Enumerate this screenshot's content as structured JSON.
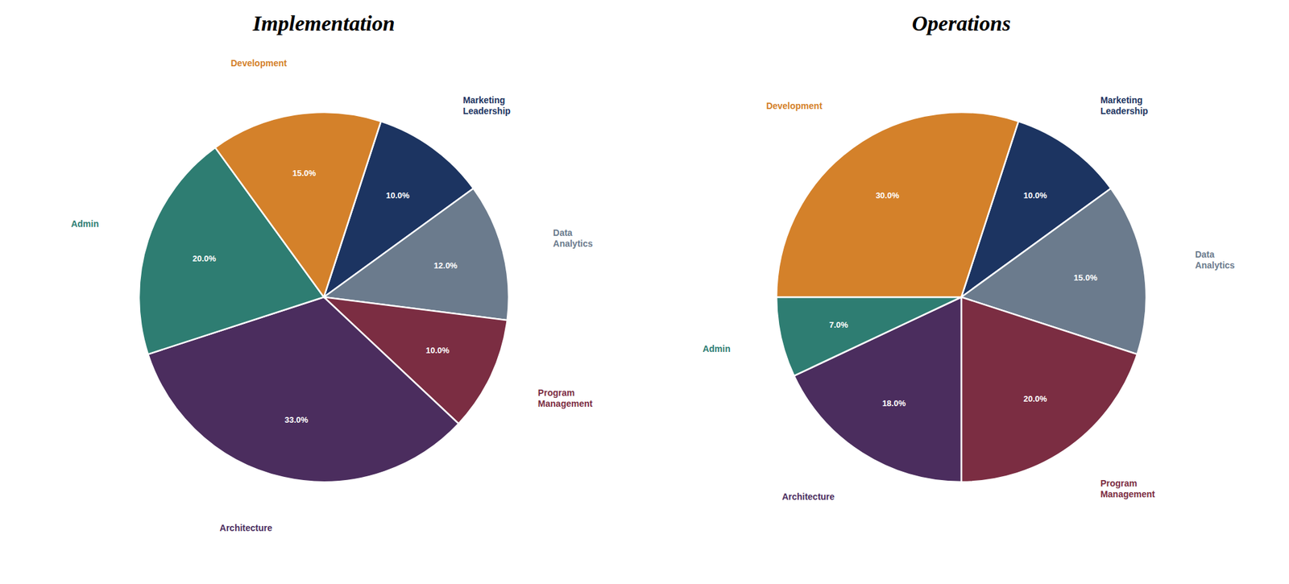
{
  "chart_data": [
    {
      "type": "pie",
      "title": "Implementation",
      "categories": [
        "Marketing\nLeadership",
        "Data\nAnalytics",
        "Program\nManagement",
        "Architecture",
        "Admin",
        "Development"
      ],
      "values": [
        10.0,
        12.0,
        10.0,
        33.0,
        20.0,
        15.0
      ],
      "value_labels": [
        "10.0%",
        "12.0%",
        "10.0%",
        "33.0%",
        "20.0%",
        "15.0%"
      ],
      "colors": [
        "#1C3461",
        "#6B7B8D",
        "#7B2D42",
        "#4B2D5E",
        "#2E7D72",
        "#D4812A"
      ],
      "data_labels": true
    },
    {
      "type": "pie",
      "title": "Operations",
      "categories": [
        "Marketing\nLeadership",
        "Data\nAnalytics",
        "Program\nManagement",
        "Architecture",
        "Admin",
        "Development"
      ],
      "values": [
        10.0,
        15.0,
        20.0,
        18.0,
        7.0,
        30.0
      ],
      "value_labels": [
        "10.0%",
        "15.0%",
        "20.0%",
        "18.0%",
        "7.0%",
        "30.0%"
      ],
      "colors": [
        "#1C3461",
        "#6B7B8D",
        "#7B2D42",
        "#4B2D5E",
        "#2E7D72",
        "#D4812A"
      ],
      "data_labels": true
    }
  ]
}
